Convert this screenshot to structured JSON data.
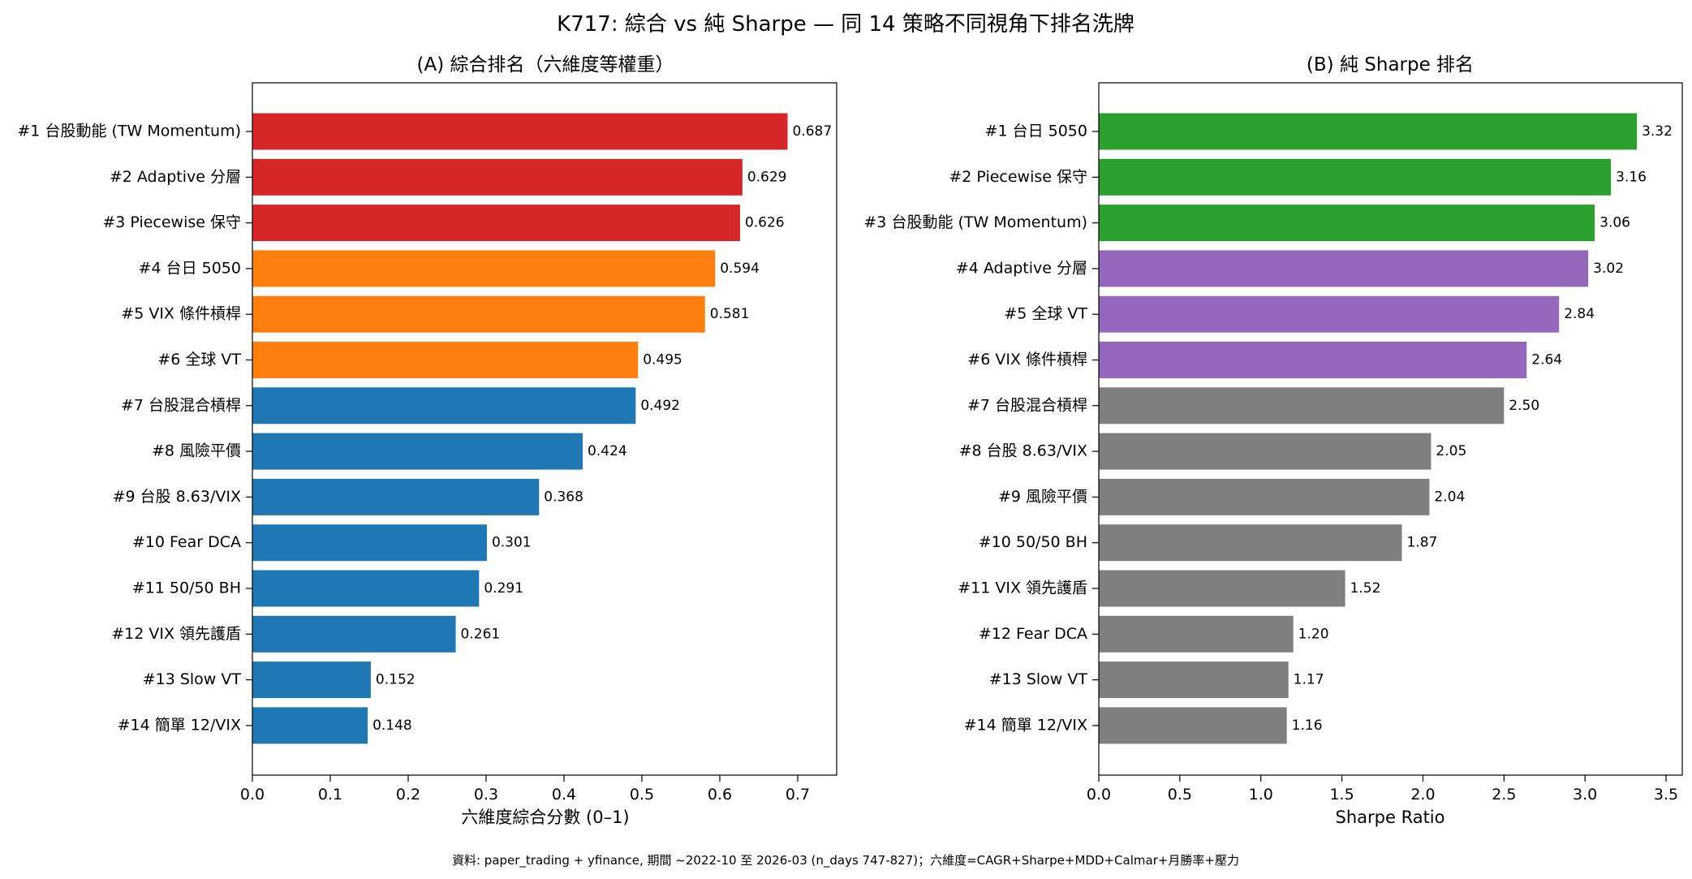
{
  "figure": {
    "title": "K717: 綜合 vs 純 Sharpe — 同 14 策略不同視角下排名洗牌",
    "footnote": "資料: paper_trading + yfinance, 期間 ~2022-10 至 2026-03 (n_days 747-827)；六維度=CAGR+Sharpe+MDD+Calmar+月勝率+壓力"
  },
  "colors": {
    "red": "#d62728",
    "orange": "#ff7f0e",
    "blue": "#1f77b4",
    "green": "#2ca02c",
    "purple": "#9467bd",
    "gray": "#7f7f7f"
  },
  "chart_data": [
    {
      "type": "bar",
      "orientation": "horizontal",
      "title": "(A) 綜合排名（六維度等權重）",
      "xlabel": "六維度綜合分數 (0–1)",
      "ylabel": "",
      "xlim": [
        0,
        0.75
      ],
      "xticks": [
        "0.0",
        "0.1",
        "0.2",
        "0.3",
        "0.4",
        "0.5",
        "0.6",
        "0.7"
      ],
      "grid": false,
      "value_format": 3,
      "categories": [
        "#1 台股動能 (TW Momentum)",
        "#2 Adaptive 分層",
        "#3 Piecewise 保守",
        "#4 台日 5050",
        "#5 VIX 條件槓桿",
        "#6 全球 VT",
        "#7 台股混合槓桿",
        "#8 風險平價",
        "#9 台股 8.63/VIX",
        "#10 Fear DCA",
        "#11 50/50 BH",
        "#12 VIX 領先護盾",
        "#13 Slow VT",
        "#14 簡單 12/VIX"
      ],
      "values": [
        0.687,
        0.629,
        0.626,
        0.594,
        0.581,
        0.495,
        0.492,
        0.424,
        0.368,
        0.301,
        0.291,
        0.261,
        0.152,
        0.148
      ],
      "bar_colors": [
        "#d62728",
        "#d62728",
        "#d62728",
        "#ff7f0e",
        "#ff7f0e",
        "#ff7f0e",
        "#1f77b4",
        "#1f77b4",
        "#1f77b4",
        "#1f77b4",
        "#1f77b4",
        "#1f77b4",
        "#1f77b4",
        "#1f77b4"
      ]
    },
    {
      "type": "bar",
      "orientation": "horizontal",
      "title": "(B) 純 Sharpe 排名",
      "xlabel": "Sharpe Ratio",
      "ylabel": "",
      "xlim": [
        0,
        3.6
      ],
      "xticks": [
        "0.0",
        "0.5",
        "1.0",
        "1.5",
        "2.0",
        "2.5",
        "3.0",
        "3.5"
      ],
      "grid": false,
      "value_format": 2,
      "categories": [
        "#1 台日 5050",
        "#2 Piecewise 保守",
        "#3 台股動能 (TW Momentum)",
        "#4 Adaptive 分層",
        "#5 全球 VT",
        "#6 VIX 條件槓桿",
        "#7 台股混合槓桿",
        "#8 台股 8.63/VIX",
        "#9 風險平價",
        "#10 50/50 BH",
        "#11 VIX 領先護盾",
        "#12 Fear DCA",
        "#13 Slow VT",
        "#14 簡單 12/VIX"
      ],
      "values": [
        3.32,
        3.16,
        3.06,
        3.02,
        2.84,
        2.64,
        2.5,
        2.05,
        2.04,
        1.87,
        1.52,
        1.2,
        1.17,
        1.16
      ],
      "bar_colors": [
        "#2ca02c",
        "#2ca02c",
        "#2ca02c",
        "#9467bd",
        "#9467bd",
        "#9467bd",
        "#7f7f7f",
        "#7f7f7f",
        "#7f7f7f",
        "#7f7f7f",
        "#7f7f7f",
        "#7f7f7f",
        "#7f7f7f",
        "#7f7f7f"
      ]
    }
  ]
}
